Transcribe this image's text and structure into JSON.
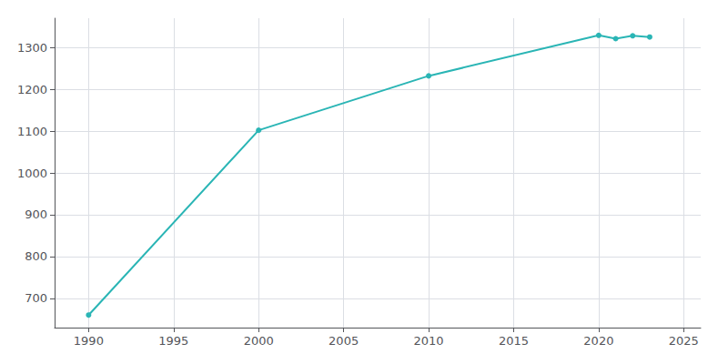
{
  "chart_data": {
    "type": "line",
    "x": [
      1990,
      2000,
      2010,
      2020,
      2021,
      2022,
      2023
    ],
    "values": [
      660,
      1102,
      1232,
      1329,
      1321,
      1328,
      1325
    ],
    "color": "#2ab5b5",
    "marker": "circle",
    "xlim": [
      1988,
      2026
    ],
    "ylim": [
      630,
      1370
    ],
    "xticks": [
      1990,
      1995,
      2000,
      2005,
      2010,
      2015,
      2020,
      2025
    ],
    "yticks": [
      700,
      800,
      900,
      1000,
      1100,
      1200,
      1300
    ],
    "grid": true
  }
}
